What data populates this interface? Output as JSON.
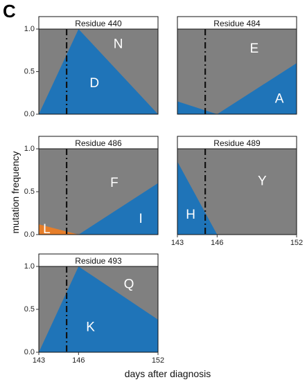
{
  "figure": {
    "panel_letter": "C",
    "xlabel": "days after diagnosis",
    "ylabel": "mutation frequency",
    "colors": {
      "background": "#808080",
      "blue": "#1f74b8",
      "orange": "#e67e2a",
      "vline": "#111111"
    }
  },
  "chart_data": [
    {
      "type": "area",
      "title": "Residue 440",
      "xlim": [
        143,
        152
      ],
      "ylim": [
        0,
        1
      ],
      "vline_x": 145.1,
      "x_ticks": [],
      "x_tick_labels": [],
      "y_ticks": [
        0,
        0.5,
        1.0
      ],
      "y_tick_labels": [
        "0.0",
        "0.5",
        "1.0"
      ],
      "series": [
        {
          "name": "D",
          "color": "blue",
          "x": [
            143,
            146,
            152
          ],
          "y": [
            0,
            1.0,
            0
          ]
        }
      ],
      "annotations": [
        {
          "text": "N",
          "x": 149.0,
          "y": 0.82
        },
        {
          "text": "D",
          "x": 147.2,
          "y": 0.36
        }
      ]
    },
    {
      "type": "area",
      "title": "Residue 484",
      "xlim": [
        143,
        152
      ],
      "ylim": [
        0,
        1
      ],
      "vline_x": 145.1,
      "x_ticks": [],
      "x_tick_labels": [],
      "y_ticks": [],
      "y_tick_labels": [],
      "series": [
        {
          "name": "A",
          "color": "blue",
          "x": [
            143,
            146,
            152
          ],
          "y": [
            0.15,
            0,
            0.6
          ]
        }
      ],
      "annotations": [
        {
          "text": "E",
          "x": 148.8,
          "y": 0.77
        },
        {
          "text": "A",
          "x": 150.7,
          "y": 0.18
        }
      ]
    },
    {
      "type": "area",
      "title": "Residue 486",
      "xlim": [
        143,
        152
      ],
      "ylim": [
        0,
        1
      ],
      "vline_x": 145.1,
      "x_ticks": [],
      "x_tick_labels": [],
      "y_ticks": [
        0,
        0.5,
        1.0
      ],
      "y_tick_labels": [
        "0.0",
        "0.5",
        "1.0"
      ],
      "series": [
        {
          "name": "L",
          "color": "orange",
          "x": [
            143,
            146
          ],
          "y": [
            0.12,
            0
          ]
        },
        {
          "name": "I",
          "color": "blue",
          "x": [
            146,
            152
          ],
          "y": [
            0,
            0.6
          ]
        }
      ],
      "annotations": [
        {
          "text": "F",
          "x": 148.7,
          "y": 0.6
        },
        {
          "text": "I",
          "x": 150.7,
          "y": 0.18
        },
        {
          "text": "L",
          "x": 143.6,
          "y": 0.06
        }
      ]
    },
    {
      "type": "area",
      "title": "Residue 489",
      "xlim": [
        143,
        152
      ],
      "ylim": [
        0,
        1
      ],
      "vline_x": 145.1,
      "x_ticks": [
        143,
        146,
        152
      ],
      "x_tick_labels": [
        "143",
        "146",
        "152"
      ],
      "y_ticks": [],
      "y_tick_labels": [],
      "series": [
        {
          "name": "H",
          "color": "blue",
          "x": [
            143,
            146
          ],
          "y": [
            0.85,
            0
          ]
        }
      ],
      "annotations": [
        {
          "text": "Y",
          "x": 149.4,
          "y": 0.62
        },
        {
          "text": "H",
          "x": 144.0,
          "y": 0.23
        }
      ]
    },
    {
      "type": "area",
      "title": "Residue 493",
      "xlim": [
        143,
        152
      ],
      "ylim": [
        0,
        1
      ],
      "vline_x": 145.1,
      "x_ticks": [
        143,
        146,
        152
      ],
      "x_tick_labels": [
        "143",
        "146",
        "152"
      ],
      "y_ticks": [
        0,
        0.5,
        1.0
      ],
      "y_tick_labels": [
        "0.0",
        "0.5",
        "1.0"
      ],
      "series": [
        {
          "name": "K",
          "color": "blue",
          "x": [
            143,
            146,
            152
          ],
          "y": [
            0,
            1.0,
            0.38
          ]
        }
      ],
      "annotations": [
        {
          "text": "Q",
          "x": 149.8,
          "y": 0.79
        },
        {
          "text": "K",
          "x": 146.9,
          "y": 0.29
        }
      ]
    }
  ]
}
